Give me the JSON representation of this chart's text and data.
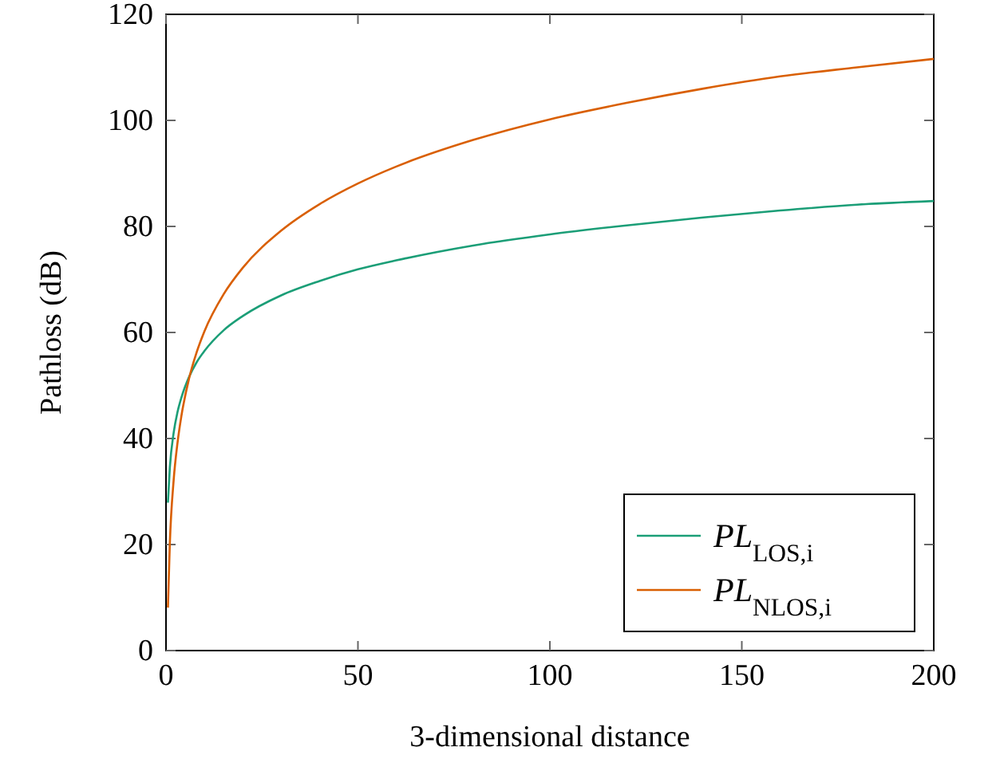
{
  "chart_data": {
    "type": "line",
    "xlabel": "3-dimensional distance",
    "ylabel": "Pathloss (dB)",
    "xlim": [
      0,
      200
    ],
    "xticks": [
      0,
      50,
      100,
      150,
      200
    ],
    "ylim": [
      0,
      120
    ],
    "yticks": [
      0,
      20,
      40,
      60,
      80,
      100,
      120
    ],
    "grid": false,
    "legend": "bottom right",
    "marker": "none",
    "line_style": "solid",
    "x": [
      0.5,
      1,
      2,
      3,
      4,
      6,
      8,
      10,
      15,
      20,
      30,
      40,
      50,
      60,
      80,
      100,
      120,
      140,
      160,
      180,
      200
    ],
    "series": [
      {
        "name": "PL$_{LOS,i}$",
        "color": "#1b9e77",
        "values": [
          27.9,
          34.5,
          41.1,
          45.0,
          47.7,
          51.6,
          54.4,
          56.5,
          60.4,
          63.1,
          67.0,
          69.7,
          71.9,
          73.6,
          76.4,
          78.5,
          80.2,
          81.7,
          83.0,
          84.1,
          84.8
        ]
      },
      {
        "name": "PL$_{NLOS,i}$",
        "color": "#d95f02",
        "values": [
          8.1,
          20.2,
          32.2,
          39.2,
          44.2,
          51.3,
          56.3,
          60.2,
          67.2,
          72.2,
          79.2,
          84.2,
          88.1,
          91.3,
          96.3,
          100.2,
          103.3,
          106.0,
          108.3,
          110.0,
          111.6
        ]
      }
    ]
  }
}
